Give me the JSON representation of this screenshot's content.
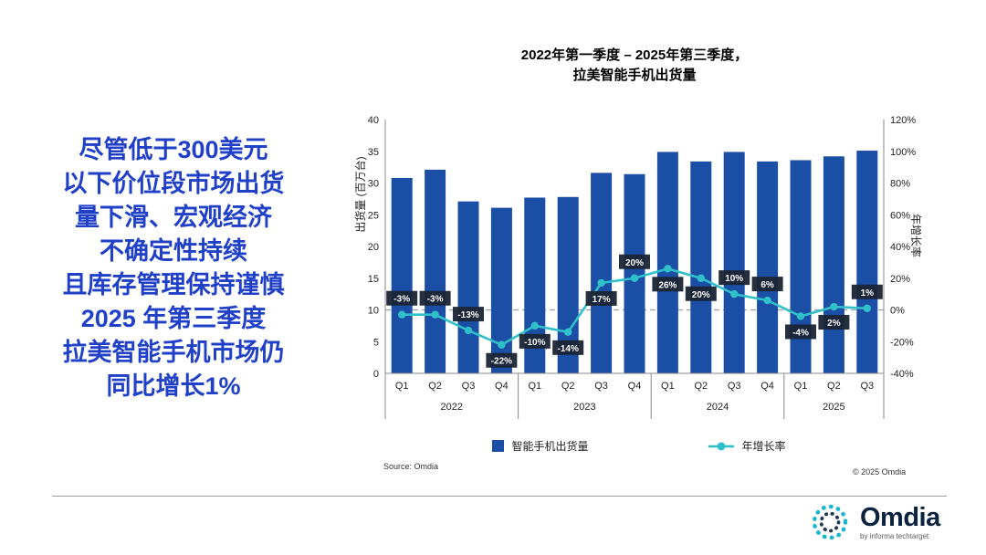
{
  "colors": {
    "bar": "#1B4EA5",
    "line": "#2FC0C9",
    "label_box": "#1A2433",
    "message_blue": "#2140C8",
    "logo_navy": "#0C2340",
    "logo_teal": "#18B7CD",
    "axis": "#888888",
    "zero_line": "#9AA0A6"
  },
  "message": {
    "lines": [
      "尽管低于300美元",
      "以下价位段市场出货",
      "量下滑、宏观经济",
      "不确定性持续",
      "且库存管理保持谨慎",
      "2025 年第三季度",
      "拉美智能手机市场仍",
      "同比增长1%"
    ]
  },
  "chart_data": {
    "type": "bar+line",
    "title_lines": [
      "2022年第一季度 – 2025年第三季度，",
      "拉美智能手机出货量"
    ],
    "ylabel_left": "出货量 (百万台)",
    "ylabel_right": "年增长率",
    "categories": [
      "Q1",
      "Q2",
      "Q3",
      "Q4",
      "Q1",
      "Q2",
      "Q3",
      "Q4",
      "Q1",
      "Q2",
      "Q3",
      "Q4",
      "Q1",
      "Q2",
      "Q3"
    ],
    "year_groups": [
      {
        "label": "2022",
        "count": 4
      },
      {
        "label": "2023",
        "count": 4
      },
      {
        "label": "2024",
        "count": 4
      },
      {
        "label": "2025",
        "count": 3
      }
    ],
    "series": [
      {
        "name": "智能手机出货量",
        "type": "bar",
        "axis": "left",
        "values": [
          30.8,
          32.1,
          27.1,
          26.1,
          27.7,
          27.8,
          31.6,
          31.4,
          34.9,
          33.4,
          34.9,
          33.4,
          33.6,
          34.2,
          35.1
        ]
      },
      {
        "name": "年增长率",
        "type": "line",
        "axis": "right",
        "values": [
          -3,
          -3,
          -13,
          -22,
          -10,
          -14,
          17,
          20,
          26,
          20,
          10,
          6,
          -4,
          2,
          1
        ]
      }
    ],
    "point_labels": [
      "-3%",
      "-3%",
      "-13%",
      "-22%",
      "-10%",
      "-14%",
      "17%",
      "20%",
      "26%",
      "20%",
      "10%",
      "6%",
      "-4%",
      "2%",
      "1%"
    ],
    "point_label_side": [
      "above",
      "above",
      "above",
      "below",
      "below",
      "below",
      "below",
      "above",
      "below",
      "below",
      "above",
      "above",
      "below",
      "below",
      "above"
    ],
    "ylim_left": [
      0,
      40
    ],
    "ylim_right": [
      -40,
      120
    ],
    "yticks_left": [
      0,
      5,
      10,
      15,
      20,
      25,
      30,
      35,
      40
    ],
    "yticks_right": [
      -40,
      -20,
      0,
      20,
      40,
      60,
      80,
      100,
      120
    ],
    "zero_line": true,
    "grid": false,
    "legend_position": "bottom"
  },
  "footer": {
    "source": "Source: Omdia",
    "copyright": "© 2025 Omdia",
    "logo_text": "Omdia",
    "logo_tagline": "by informa techtarget"
  }
}
